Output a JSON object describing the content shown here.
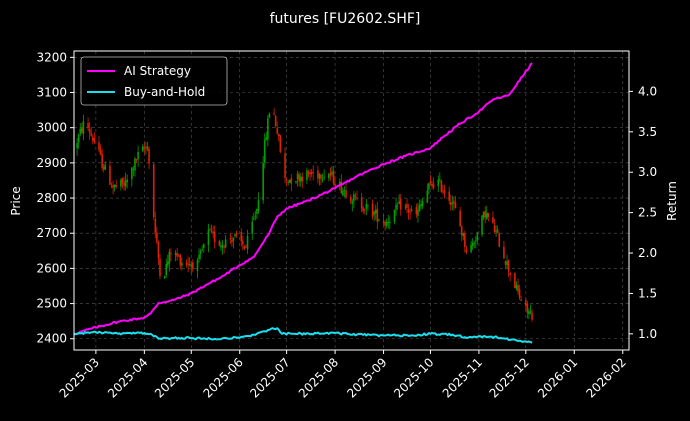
{
  "chart_data": {
    "type": "line",
    "title": "futures [FU2602.SHF]",
    "ylabel": "Price",
    "y2label": "Return",
    "background": "#000000",
    "grid": true,
    "legend_position": "top-left",
    "xlim": [
      "2025-02-15",
      "2026-02-05"
    ],
    "ylim": [
      2368,
      3218
    ],
    "y2lim": [
      0.8,
      4.5
    ],
    "x_tick_labels": [
      "2025-03",
      "2025-04",
      "2025-05",
      "2025-06",
      "2025-07",
      "2025-08",
      "2025-09",
      "2025-10",
      "2025-11",
      "2025-12",
      "2026-01",
      "2026-02"
    ],
    "x_ticks": [
      "2025-03-01",
      "2025-04-01",
      "2025-05-01",
      "2025-06-01",
      "2025-07-01",
      "2025-08-01",
      "2025-09-01",
      "2025-10-01",
      "2025-11-01",
      "2025-12-01",
      "2026-01-01",
      "2026-02-01"
    ],
    "y_ticks": [
      2400,
      2500,
      2600,
      2700,
      2800,
      2900,
      3000,
      3100,
      3200
    ],
    "y2_ticks": [
      1.0,
      1.5,
      2.0,
      2.5,
      3.0,
      3.5,
      4.0
    ],
    "y2_tick_labels": [
      "1.0",
      "1.5",
      "2.0",
      "2.5",
      "3.0",
      "3.5",
      "4.0"
    ],
    "candle_colors": {
      "up": "#00a000",
      "down": "#e02000"
    },
    "price_path": [
      [
        "2025-02-15",
        2940
      ],
      [
        "2025-02-22",
        3020
      ],
      [
        "2025-02-28",
        2960
      ],
      [
        "2025-03-05",
        2900
      ],
      [
        "2025-03-12",
        2830
      ],
      [
        "2025-03-20",
        2840
      ],
      [
        "2025-03-28",
        2920
      ],
      [
        "2025-04-03",
        2950
      ],
      [
        "2025-04-08",
        2700
      ],
      [
        "2025-04-12",
        2560
      ],
      [
        "2025-04-18",
        2650
      ],
      [
        "2025-04-25",
        2620
      ],
      [
        "2025-05-05",
        2610
      ],
      [
        "2025-05-12",
        2700
      ],
      [
        "2025-05-20",
        2670
      ],
      [
        "2025-05-28",
        2690
      ],
      [
        "2025-06-05",
        2660
      ],
      [
        "2025-06-12",
        2770
      ],
      [
        "2025-06-17",
        2950
      ],
      [
        "2025-06-21",
        3080
      ],
      [
        "2025-06-25",
        2990
      ],
      [
        "2025-06-30",
        2850
      ],
      [
        "2025-07-08",
        2860
      ],
      [
        "2025-07-18",
        2870
      ],
      [
        "2025-07-28",
        2870
      ],
      [
        "2025-08-05",
        2830
      ],
      [
        "2025-08-15",
        2790
      ],
      [
        "2025-08-25",
        2760
      ],
      [
        "2025-09-02",
        2730
      ],
      [
        "2025-09-12",
        2780
      ],
      [
        "2025-09-22",
        2750
      ],
      [
        "2025-09-30",
        2830
      ],
      [
        "2025-10-05",
        2850
      ],
      [
        "2025-10-15",
        2790
      ],
      [
        "2025-10-20",
        2720
      ],
      [
        "2025-10-25",
        2640
      ],
      [
        "2025-10-31",
        2700
      ],
      [
        "2025-11-05",
        2760
      ],
      [
        "2025-11-12",
        2700
      ],
      [
        "2025-11-20",
        2600
      ],
      [
        "2025-11-25",
        2540
      ],
      [
        "2025-12-01",
        2480
      ],
      [
        "2025-12-05",
        2470
      ]
    ],
    "series": [
      {
        "name": "AI Strategy",
        "color": "#ff00ff",
        "axis": "right",
        "x": [
          "2025-02-15",
          "2025-03-01",
          "2025-03-15",
          "2025-04-01",
          "2025-04-05",
          "2025-04-10",
          "2025-04-20",
          "2025-05-01",
          "2025-05-10",
          "2025-05-20",
          "2025-06-01",
          "2025-06-10",
          "2025-06-15",
          "2025-06-20",
          "2025-06-25",
          "2025-07-01",
          "2025-07-15",
          "2025-08-01",
          "2025-08-15",
          "2025-09-01",
          "2025-09-15",
          "2025-10-01",
          "2025-10-10",
          "2025-10-20",
          "2025-11-01",
          "2025-11-10",
          "2025-11-20",
          "2025-12-05"
        ],
        "values": [
          1.0,
          1.08,
          1.15,
          1.2,
          1.25,
          1.38,
          1.42,
          1.5,
          1.6,
          1.7,
          1.85,
          1.95,
          2.1,
          2.25,
          2.45,
          2.55,
          2.65,
          2.8,
          2.95,
          3.1,
          3.2,
          3.3,
          3.45,
          3.6,
          3.75,
          3.9,
          3.95,
          4.35
        ]
      },
      {
        "name": "Buy-and-Hold",
        "color": "#19e0f0",
        "axis": "right",
        "x": [
          "2025-02-15",
          "2025-03-01",
          "2025-03-15",
          "2025-04-01",
          "2025-04-05",
          "2025-04-10",
          "2025-04-25",
          "2025-05-10",
          "2025-06-01",
          "2025-06-10",
          "2025-06-20",
          "2025-06-25",
          "2025-06-28",
          "2025-07-05",
          "2025-08-01",
          "2025-08-15",
          "2025-09-01",
          "2025-09-20",
          "2025-10-01",
          "2025-10-15",
          "2025-10-25",
          "2025-11-05",
          "2025-11-15",
          "2025-11-25",
          "2025-12-05"
        ],
        "values": [
          1.0,
          1.02,
          1.0,
          1.01,
          1.0,
          0.94,
          0.95,
          0.94,
          0.95,
          0.99,
          1.05,
          1.07,
          1.0,
          1.0,
          1.01,
          0.99,
          0.98,
          0.98,
          1.0,
          0.99,
          0.95,
          0.97,
          0.95,
          0.92,
          0.89
        ]
      }
    ]
  }
}
